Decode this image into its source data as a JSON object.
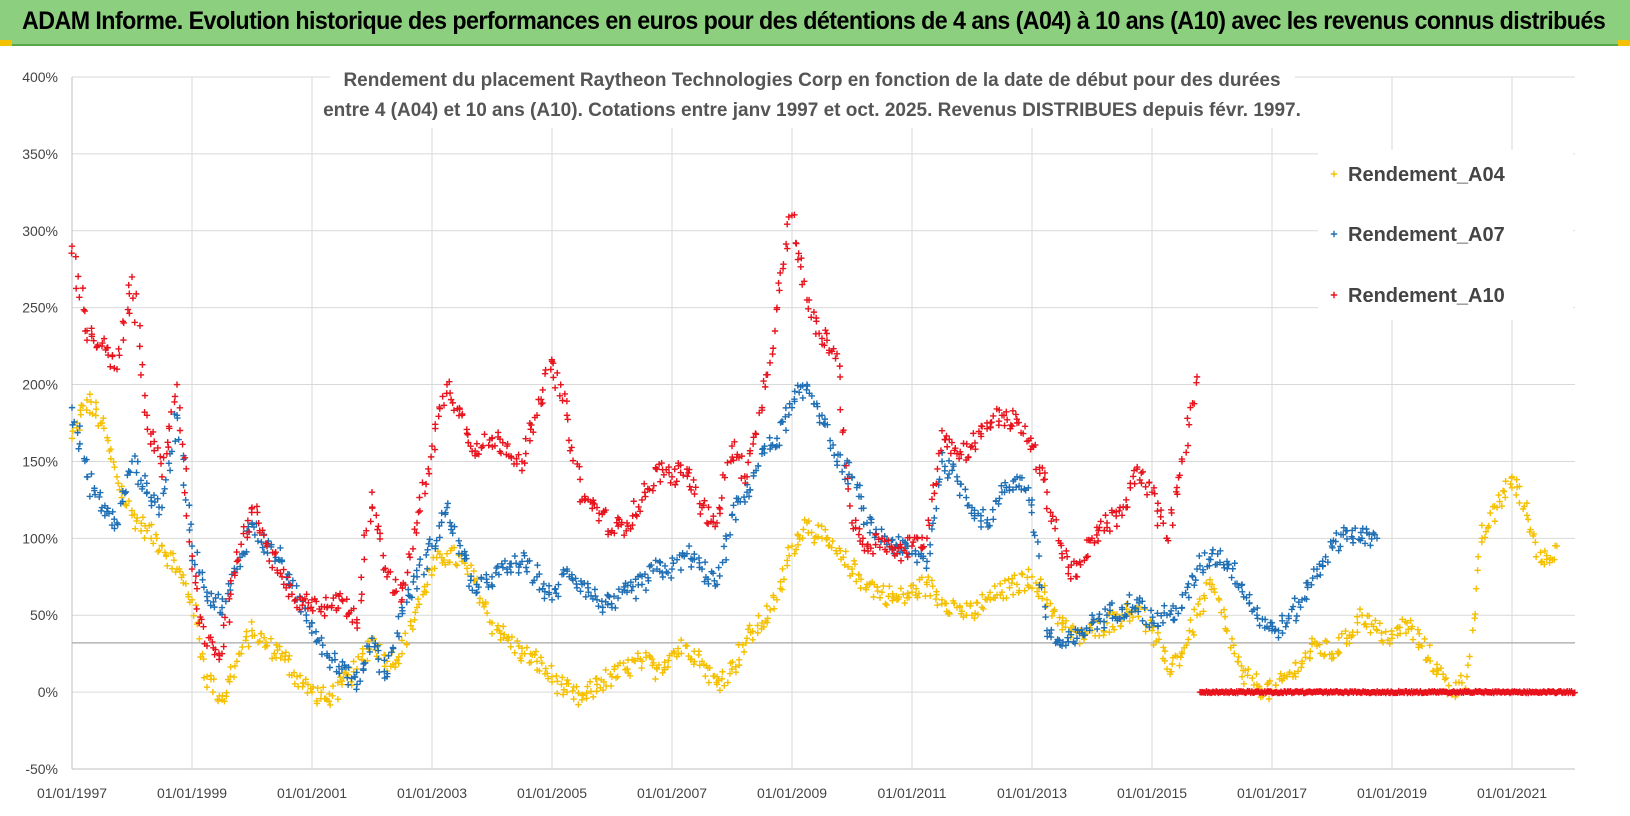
{
  "banner": {
    "title": "ADAM Informe. Evolution historique des performances en euros pour des détentions de 4 ans (A04) à 10 ans (A10) avec les revenus connus distribués",
    "color": "#8ccf7e"
  },
  "chart_data": {
    "type": "scatter",
    "title_line1": "Rendement du placement Raytheon Technologies Corp en fonction de la date de début pour des durées",
    "title_line2": "entre 4 (A04) et 10 ans (A10). Cotations entre janv 1997 et oct. 2025. Revenus DISTRIBUES depuis févr. 1997.",
    "xlabel": "",
    "ylabel": "",
    "xlim": [
      1997.0,
      2022.05
    ],
    "ylim": [
      -50,
      400
    ],
    "x_tick_values": [
      1997,
      1999,
      2001,
      2003,
      2005,
      2007,
      2009,
      2011,
      2013,
      2015,
      2017,
      2019,
      2021
    ],
    "x_tick_labels": [
      "01/01/1997",
      "01/01/1999",
      "01/01/2001",
      "01/01/2003",
      "01/01/2005",
      "01/01/2007",
      "01/01/2009",
      "01/01/2011",
      "01/01/2013",
      "01/01/2015",
      "01/01/2017",
      "01/01/2019",
      "01/01/2021"
    ],
    "y_tick_values": [
      -50,
      0,
      50,
      100,
      150,
      200,
      250,
      300,
      350,
      400
    ],
    "y_tick_labels": [
      "-50%",
      "0%",
      "50%",
      "100%",
      "150%",
      "200%",
      "250%",
      "300%",
      "350%",
      "400%"
    ],
    "reference_line": 32,
    "grid": true,
    "legend_position": "top-right",
    "series": [
      {
        "name": "Rendement_A04",
        "color": "#f5c000",
        "x": [
          1997.0,
          1997.25,
          1997.5,
          1997.75,
          1998.0,
          1998.25,
          1998.5,
          1998.75,
          1999.0,
          1999.25,
          1999.5,
          1999.75,
          2000.0,
          2000.25,
          2000.5,
          2000.75,
          2001.0,
          2001.25,
          2001.5,
          2001.75,
          2002.0,
          2002.25,
          2002.5,
          2002.75,
          2003.0,
          2003.25,
          2003.5,
          2003.75,
          2004.0,
          2004.25,
          2004.5,
          2004.75,
          2005.0,
          2005.25,
          2005.5,
          2005.75,
          2006.0,
          2006.25,
          2006.5,
          2006.75,
          2007.0,
          2007.25,
          2007.5,
          2007.75,
          2008.0,
          2008.25,
          2008.5,
          2008.75,
          2009.0,
          2009.25,
          2009.5,
          2009.75,
          2010.0,
          2010.25,
          2010.5,
          2010.75,
          2011.0,
          2011.25,
          2011.5,
          2011.75,
          2012.0,
          2012.25,
          2012.5,
          2012.75,
          2013.0,
          2013.25,
          2013.5,
          2013.75,
          2014.0,
          2014.25,
          2014.5,
          2014.75,
          2015.0,
          2015.25,
          2015.5,
          2015.75,
          2016.0,
          2016.25,
          2016.5,
          2016.75,
          2017.0,
          2017.25,
          2017.5,
          2017.75,
          2018.0,
          2018.25,
          2018.5,
          2018.75,
          2019.0,
          2019.25,
          2019.5,
          2019.75,
          2020.0,
          2020.25,
          2020.5,
          2020.75,
          2021.0,
          2021.25,
          2021.5,
          2021.75
        ],
        "y": [
          165,
          190,
          175,
          140,
          115,
          105,
          95,
          80,
          60,
          10,
          -5,
          20,
          40,
          30,
          25,
          10,
          0,
          -5,
          5,
          15,
          35,
          20,
          25,
          55,
          80,
          90,
          85,
          70,
          45,
          35,
          25,
          20,
          10,
          0,
          -5,
          5,
          10,
          15,
          20,
          15,
          25,
          30,
          20,
          5,
          15,
          35,
          45,
          60,
          95,
          110,
          100,
          90,
          80,
          70,
          65,
          60,
          65,
          70,
          60,
          55,
          50,
          60,
          65,
          70,
          75,
          60,
          45,
          35,
          40,
          45,
          50,
          55,
          40,
          15,
          25,
          50,
          70,
          40,
          10,
          5,
          0,
          10,
          20,
          30,
          25,
          35,
          50,
          40,
          35,
          45,
          30,
          15,
          0,
          10,
          100,
          120,
          140,
          115,
          85,
          95
        ]
      },
      {
        "name": "Rendement_A07",
        "color": "#1f6fb5",
        "x": [
          1997.0,
          1997.25,
          1997.5,
          1997.75,
          1998.0,
          1998.25,
          1998.5,
          1998.75,
          1999.0,
          1999.25,
          1999.5,
          1999.75,
          2000.0,
          2000.25,
          2000.5,
          2000.75,
          2001.0,
          2001.25,
          2001.5,
          2001.75,
          2002.0,
          2002.25,
          2002.5,
          2002.75,
          2003.0,
          2003.25,
          2003.5,
          2003.75,
          2004.0,
          2004.25,
          2004.5,
          2004.75,
          2005.0,
          2005.25,
          2005.5,
          2005.75,
          2006.0,
          2006.25,
          2006.5,
          2006.75,
          2007.0,
          2007.25,
          2007.5,
          2007.75,
          2008.0,
          2008.25,
          2008.5,
          2008.75,
          2009.0,
          2009.25,
          2009.5,
          2009.75,
          2010.0,
          2010.25,
          2010.5,
          2010.75,
          2011.0,
          2011.25,
          2011.5,
          2011.75,
          2012.0,
          2012.25,
          2012.5,
          2012.75,
          2013.0,
          2013.25,
          2013.5,
          2013.75,
          2014.0,
          2014.25,
          2014.5,
          2014.75,
          2015.0,
          2015.25,
          2015.5,
          2015.75,
          2016.0,
          2016.25,
          2016.5,
          2016.75,
          2017.0,
          2017.25,
          2017.5,
          2017.75,
          2018.0,
          2018.25,
          2018.5,
          2018.75
        ],
        "y": [
          185,
          140,
          120,
          110,
          150,
          130,
          120,
          180,
          95,
          65,
          55,
          80,
          110,
          95,
          85,
          60,
          45,
          25,
          15,
          5,
          35,
          10,
          55,
          75,
          95,
          120,
          90,
          65,
          75,
          80,
          85,
          75,
          60,
          80,
          70,
          60,
          55,
          65,
          70,
          80,
          80,
          90,
          80,
          70,
          115,
          130,
          155,
          165,
          185,
          200,
          180,
          150,
          140,
          110,
          100,
          95,
          90,
          85,
          150,
          140,
          120,
          110,
          130,
          140,
          125,
          40,
          30,
          35,
          45,
          50,
          55,
          60,
          45,
          50,
          55,
          80,
          90,
          85,
          70,
          50,
          40,
          45,
          60,
          80,
          95,
          105,
          100,
          100
        ]
      },
      {
        "name": "Rendement_A10",
        "color": "#e8131c",
        "x": [
          1997.0,
          1997.25,
          1997.5,
          1997.75,
          1998.0,
          1998.25,
          1998.5,
          1998.75,
          1999.0,
          1999.25,
          1999.5,
          1999.75,
          2000.0,
          2000.25,
          2000.5,
          2000.75,
          2001.0,
          2001.25,
          2001.5,
          2001.75,
          2002.0,
          2002.25,
          2002.5,
          2002.75,
          2003.0,
          2003.25,
          2003.5,
          2003.75,
          2004.0,
          2004.25,
          2004.5,
          2004.75,
          2005.0,
          2005.25,
          2005.5,
          2005.75,
          2006.0,
          2006.25,
          2006.5,
          2006.75,
          2007.0,
          2007.25,
          2007.5,
          2007.75,
          2008.0,
          2008.25,
          2008.5,
          2008.75,
          2009.0,
          2009.25,
          2009.5,
          2009.75,
          2010.0,
          2010.25,
          2010.5,
          2010.75,
          2011.0,
          2011.25,
          2011.5,
          2011.75,
          2012.0,
          2012.25,
          2012.5,
          2012.75,
          2013.0,
          2013.25,
          2013.5,
          2013.75,
          2014.0,
          2014.25,
          2014.5,
          2014.75,
          2015.0,
          2015.25,
          2015.5,
          2015.75
        ],
        "y": [
          290,
          235,
          225,
          210,
          270,
          180,
          140,
          200,
          80,
          30,
          25,
          85,
          120,
          95,
          75,
          55,
          60,
          55,
          60,
          45,
          130,
          75,
          60,
          110,
          160,
          200,
          180,
          155,
          165,
          160,
          150,
          180,
          215,
          180,
          125,
          120,
          105,
          110,
          125,
          145,
          140,
          145,
          120,
          110,
          160,
          140,
          185,
          250,
          310,
          255,
          230,
          220,
          110,
          95,
          100,
          90,
          95,
          100,
          170,
          155,
          160,
          175,
          180,
          175,
          160,
          130,
          90,
          75,
          100,
          110,
          115,
          145,
          130,
          100,
          150,
          205
        ]
      }
    ],
    "zero_band": {
      "name": "Rendement_A10",
      "from_x": 2015.8,
      "to_x": 2022.05,
      "y": 0,
      "color": "#e8131c"
    }
  }
}
